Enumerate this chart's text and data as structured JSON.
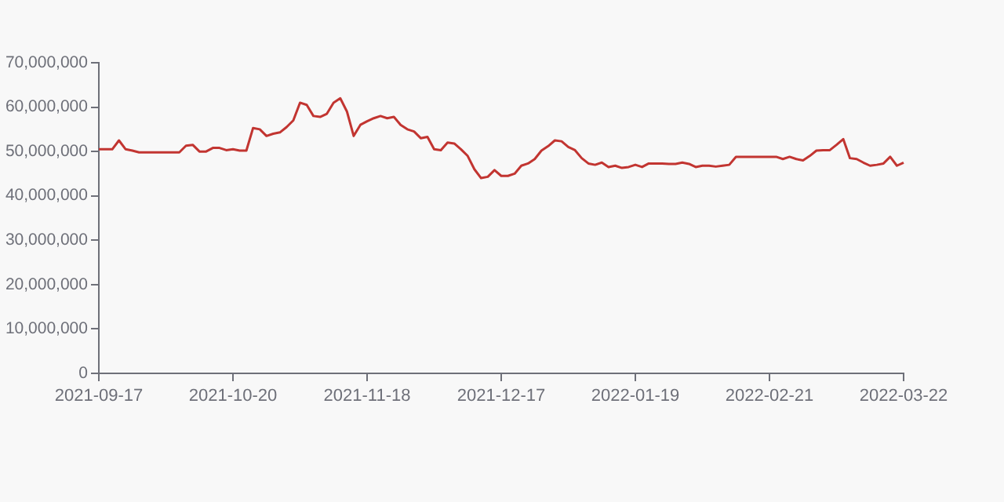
{
  "chart_data": {
    "type": "line",
    "categories": [
      "2021-09-17",
      null,
      null,
      null,
      null,
      null,
      null,
      null,
      null,
      null,
      null,
      null,
      null,
      null,
      null,
      null,
      null,
      null,
      null,
      null,
      "2021-10-20",
      null,
      null,
      null,
      null,
      null,
      null,
      null,
      null,
      null,
      null,
      null,
      null,
      null,
      null,
      null,
      null,
      null,
      null,
      null,
      "2021-11-18",
      null,
      null,
      null,
      null,
      null,
      null,
      null,
      null,
      null,
      null,
      null,
      null,
      null,
      null,
      null,
      null,
      null,
      null,
      null,
      "2021-12-17",
      null,
      null,
      null,
      null,
      null,
      null,
      null,
      null,
      null,
      null,
      null,
      null,
      null,
      null,
      null,
      null,
      null,
      null,
      null,
      "2022-01-19",
      null,
      null,
      null,
      null,
      null,
      null,
      null,
      null,
      null,
      null,
      null,
      null,
      null,
      null,
      null,
      null,
      null,
      null,
      null,
      "2022-02-21",
      null,
      null,
      null,
      null,
      null,
      null,
      null,
      null,
      null,
      null,
      null,
      null,
      null,
      null,
      null,
      null,
      null,
      null,
      null,
      "2022-03-22"
    ],
    "series": [
      {
        "color": "#c23531",
        "values": [
          50500000,
          50500000,
          50500000,
          52500000,
          50500000,
          50200000,
          49800000,
          49800000,
          49800000,
          49800000,
          49800000,
          49800000,
          49800000,
          51300000,
          51500000,
          50000000,
          50000000,
          50800000,
          50800000,
          50300000,
          50500000,
          50200000,
          50200000,
          55300000,
          55000000,
          53500000,
          54000000,
          54300000,
          55500000,
          57000000,
          61000000,
          60500000,
          58000000,
          57800000,
          58500000,
          61000000,
          62000000,
          59000000,
          53500000,
          56000000,
          56800000,
          57500000,
          58000000,
          57500000,
          57800000,
          56000000,
          55000000,
          54500000,
          53000000,
          53300000,
          50500000,
          50300000,
          52000000,
          51800000,
          50500000,
          49000000,
          46000000,
          44000000,
          44300000,
          45800000,
          44500000,
          44500000,
          45000000,
          46800000,
          47300000,
          48300000,
          50200000,
          51200000,
          52500000,
          52300000,
          51000000,
          50300000,
          48500000,
          47300000,
          47000000,
          47500000,
          46500000,
          46800000,
          46300000,
          46500000,
          47000000,
          46500000,
          47300000,
          47300000,
          47300000,
          47200000,
          47200000,
          47500000,
          47200000,
          46500000,
          46800000,
          46800000,
          46600000,
          46800000,
          47000000,
          48800000,
          48800000,
          48800000,
          48800000,
          48800000,
          48800000,
          48800000,
          48300000,
          48800000,
          48300000,
          48000000,
          49000000,
          50200000,
          50300000,
          50300000,
          51500000,
          52800000,
          48500000,
          48300000,
          47500000,
          46800000,
          47000000,
          47300000,
          48800000,
          46800000,
          47500000
        ]
      }
    ],
    "ylim": [
      0,
      70000000
    ],
    "yticks": [
      0,
      {
        "value": 10000000,
        "label": "10,000,000"
      },
      {
        "value": 20000000,
        "label": "20,000,000"
      },
      {
        "value": 30000000,
        "label": "30,000,000"
      },
      {
        "value": 40000000,
        "label": "40,000,000"
      },
      {
        "value": 50000000,
        "label": "50,000,000"
      },
      {
        "value": 60000000,
        "label": "60,000,000"
      },
      {
        "value": 70000000,
        "label": "70,000,000"
      }
    ],
    "grid": false,
    "legend": false,
    "marker": "none",
    "line_style": "solid"
  }
}
